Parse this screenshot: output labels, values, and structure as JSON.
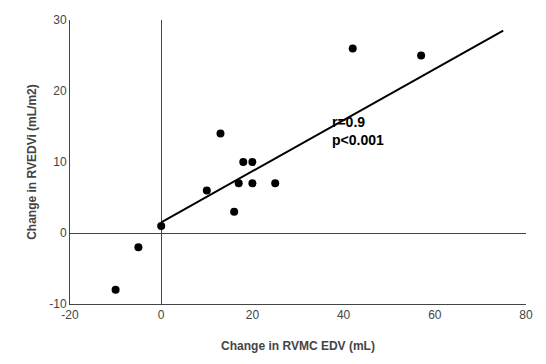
{
  "chart_data": {
    "type": "scatter",
    "x": [
      -10,
      -5,
      0,
      10,
      13,
      16,
      17,
      18,
      20,
      20,
      25,
      42,
      57
    ],
    "values": [
      -8,
      -2,
      1,
      6,
      14,
      3,
      7,
      10,
      10,
      7,
      7,
      26,
      25
    ],
    "color": "#000000",
    "marker": "circle",
    "regression": {
      "x": [
        0,
        75
      ],
      "values": [
        1.5,
        28.5
      ],
      "color": "#000000",
      "line_style": "solid"
    },
    "xlabel": "Change in RVMC EDV (mL)",
    "ylabel": "Change in RVEDVi (mL/m2)",
    "annotations": [
      {
        "lines": [
          "r=0.9",
          "p<0.001"
        ],
        "x": 37,
        "y": 17
      }
    ],
    "xlim": [
      -20,
      80
    ],
    "ylim": [
      -10,
      30
    ],
    "xticks": [
      -20,
      0,
      20,
      40,
      60,
      80
    ],
    "yticks": [
      -10,
      0,
      10,
      20,
      30
    ],
    "grid": false
  }
}
